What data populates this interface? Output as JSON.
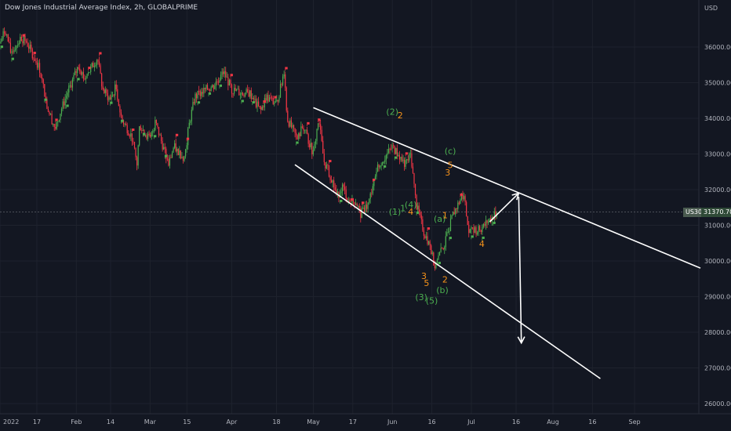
{
  "chart_data": {
    "type": "candlestick",
    "title": "Dow Jones Industrial Average Index, 2h, GLOBALPRIME",
    "currency": "USD",
    "symbol": "US30",
    "last_price": "31370.70",
    "x_ticks": [
      "2022",
      "17",
      "Feb",
      "14",
      "Mar",
      "15",
      "Apr",
      "18",
      "May",
      "17",
      "Jun",
      "16",
      "Jul",
      "16",
      "Aug",
      "16",
      "Sep"
    ],
    "y_ticks": [
      "36000.00",
      "35000.00",
      "34000.00",
      "33000.00",
      "32000.00",
      "31000.00",
      "30000.00",
      "29000.00",
      "28000.00",
      "27000.00",
      "26000.00"
    ],
    "ylim": [
      25700,
      37150
    ],
    "colors": {
      "up": "#4caf50",
      "down": "#f23645",
      "markers_sell": "#f23645",
      "markers_buy": "#4caf50",
      "trendline": "#ffffff",
      "wave_green": "#4caf50",
      "wave_orange": "#f7931a",
      "price_line": "#5d606b",
      "badge_symbol": "#4a5b50",
      "badge_price": "#2f4a37"
    },
    "price_path": [
      [
        "2022-01-03",
        36100
      ],
      [
        "2022-01-05",
        36500
      ],
      [
        "2022-01-07",
        35850
      ],
      [
        "2022-01-11",
        36250
      ],
      [
        "2022-01-13",
        36150
      ],
      [
        "2022-01-18",
        35400
      ],
      [
        "2022-01-21",
        34300
      ],
      [
        "2022-01-24",
        33700
      ],
      [
        "2022-01-26",
        34200
      ],
      [
        "2022-01-28",
        34600
      ],
      [
        "2022-02-02",
        35500
      ],
      [
        "2022-02-04",
        35100
      ],
      [
        "2022-02-09",
        35700
      ],
      [
        "2022-02-11",
        34800
      ],
      [
        "2022-02-14",
        34500
      ],
      [
        "2022-02-16",
        34900
      ],
      [
        "2022-02-18",
        34000
      ],
      [
        "2022-02-22",
        33500
      ],
      [
        "2022-02-24",
        32700
      ],
      [
        "2022-02-25",
        33800
      ],
      [
        "2022-03-01",
        33400
      ],
      [
        "2022-03-03",
        33900
      ],
      [
        "2022-03-08",
        32700
      ],
      [
        "2022-03-10",
        33200
      ],
      [
        "2022-03-14",
        32900
      ],
      [
        "2022-03-16",
        33900
      ],
      [
        "2022-03-18",
        34600
      ],
      [
        "2022-03-22",
        34800
      ],
      [
        "2022-03-25",
        34900
      ],
      [
        "2022-03-29",
        35300
      ],
      [
        "2022-04-01",
        34800
      ],
      [
        "2022-04-05",
        34700
      ],
      [
        "2022-04-08",
        34700
      ],
      [
        "2022-04-12",
        34200
      ],
      [
        "2022-04-14",
        34600
      ],
      [
        "2022-04-18",
        34400
      ],
      [
        "2022-04-20",
        35000
      ],
      [
        "2022-04-21",
        35400
      ],
      [
        "2022-04-22",
        34000
      ],
      [
        "2022-04-26",
        33400
      ],
      [
        "2022-04-28",
        33800
      ],
      [
        "2022-05-02",
        33000
      ],
      [
        "2022-05-04",
        34000
      ],
      [
        "2022-05-06",
        32800
      ],
      [
        "2022-05-09",
        32300
      ],
      [
        "2022-05-11",
        31800
      ],
      [
        "2022-05-13",
        32100
      ],
      [
        "2022-05-16",
        31600
      ],
      [
        "2022-05-18",
        31700
      ],
      [
        "2022-05-20",
        31300
      ],
      [
        "2022-05-23",
        31600
      ],
      [
        "2022-05-26",
        32600
      ],
      [
        "2022-06-01",
        33200
      ],
      [
        "2022-06-06",
        32700
      ],
      [
        "2022-06-08",
        33000
      ],
      [
        "2022-06-10",
        31600
      ],
      [
        "2022-06-13",
        30800
      ],
      [
        "2022-06-15",
        30500
      ],
      [
        "2022-06-17",
        29900
      ],
      [
        "2022-06-21",
        30500
      ],
      [
        "2022-06-24",
        31300
      ],
      [
        "2022-06-28",
        31900
      ],
      [
        "2022-06-30",
        30800
      ],
      [
        "2022-07-05",
        30900
      ],
      [
        "2022-07-07",
        31100
      ],
      [
        "2022-07-11",
        31370
      ]
    ],
    "annotations": {
      "trendlines": [
        {
          "from": [
            "2022-05-02",
            34300
          ],
          "to": [
            "2022-09-26",
            29800
          ]
        },
        {
          "from": [
            "2022-04-25",
            32700
          ],
          "to": [
            "2022-08-19",
            26700
          ]
        }
      ],
      "arrows": [
        {
          "from": [
            "2022-07-08",
            31100
          ],
          "to": [
            "2022-07-19",
            31900
          ]
        },
        {
          "from": [
            "2022-07-19",
            31800
          ],
          "to": [
            "2022-07-20",
            27700
          ]
        }
      ],
      "wave_labels": [
        {
          "text": "(2)",
          "color": "green",
          "at": [
            "2022-06-01",
            34100
          ]
        },
        {
          "text": "2",
          "color": "orange",
          "at": [
            "2022-06-04",
            34000
          ]
        },
        {
          "text": "(c)",
          "color": "green",
          "at": [
            "2022-06-23",
            33000
          ]
        },
        {
          "text": "5",
          "color": "orange",
          "at": [
            "2022-06-23",
            32600
          ]
        },
        {
          "text": "3",
          "color": "orange",
          "at": [
            "2022-06-22",
            32400
          ]
        },
        {
          "text": "(1)",
          "color": "green",
          "at": [
            "2022-06-02",
            31300
          ]
        },
        {
          "text": "1",
          "color": "green",
          "at": [
            "2022-06-05",
            31400
          ]
        },
        {
          "text": "(4)",
          "color": "green",
          "at": [
            "2022-06-08",
            31500
          ]
        },
        {
          "text": "4",
          "color": "orange",
          "at": [
            "2022-06-08",
            31300
          ]
        },
        {
          "text": "(a)",
          "color": "green",
          "at": [
            "2022-06-19",
            31100
          ]
        },
        {
          "text": "1",
          "color": "orange",
          "at": [
            "2022-06-21",
            31200
          ]
        },
        {
          "text": "4",
          "color": "orange",
          "at": [
            "2022-07-05",
            30400
          ]
        },
        {
          "text": "3",
          "color": "orange",
          "at": [
            "2022-06-13",
            29500
          ]
        },
        {
          "text": "5",
          "color": "orange",
          "at": [
            "2022-06-14",
            29300
          ]
        },
        {
          "text": "2",
          "color": "orange",
          "at": [
            "2022-06-21",
            29400
          ]
        },
        {
          "text": "(b)",
          "color": "green",
          "at": [
            "2022-06-20",
            29100
          ]
        },
        {
          "text": "(3)",
          "color": "green",
          "at": [
            "2022-06-12",
            28900
          ]
        },
        {
          "text": "(5)",
          "color": "green",
          "at": [
            "2022-06-16",
            28800
          ]
        }
      ]
    }
  }
}
